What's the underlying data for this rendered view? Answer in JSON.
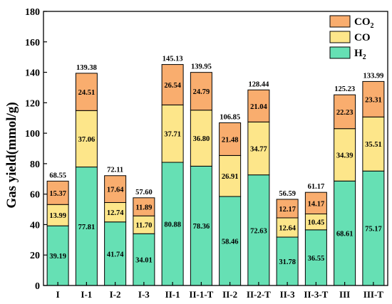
{
  "chart_data": {
    "type": "bar",
    "stacked": true,
    "ylabel": "Gas yield(mmol/g)",
    "ylim": [
      0,
      180
    ],
    "yticks": [
      0,
      20,
      40,
      60,
      80,
      100,
      120,
      140,
      160,
      180
    ],
    "categories": [
      "I",
      "I-1",
      "I-2",
      "I-3",
      "II-1",
      "II-1-T",
      "II-2",
      "II-2-T",
      "II-3",
      "II-3-T",
      "III",
      "III-T"
    ],
    "series": [
      {
        "name": "H2",
        "name_main": "H",
        "name_sub": "2",
        "color": "#66e0b4",
        "values": [
          39.19,
          77.81,
          41.74,
          34.01,
          80.88,
          78.36,
          58.46,
          72.63,
          31.78,
          36.55,
          68.61,
          75.17
        ]
      },
      {
        "name": "CO",
        "name_main": "CO",
        "name_sub": "",
        "color": "#fde68a",
        "values": [
          13.99,
          37.06,
          12.74,
          11.7,
          37.71,
          36.8,
          26.91,
          34.77,
          12.64,
          10.45,
          34.39,
          35.51
        ]
      },
      {
        "name": "CO2",
        "name_main": "CO",
        "name_sub": "2",
        "color": "#f9ad6e",
        "values": [
          15.37,
          24.51,
          17.64,
          11.89,
          26.54,
          24.79,
          21.48,
          21.04,
          12.17,
          14.17,
          22.23,
          23.31
        ]
      }
    ],
    "totals": [
      68.55,
      139.38,
      72.11,
      57.6,
      145.13,
      139.95,
      106.85,
      128.44,
      56.59,
      61.17,
      125.23,
      133.99
    ],
    "legend": {
      "position": "top-right",
      "order": [
        "CO2",
        "CO",
        "H2"
      ]
    },
    "grid": false
  }
}
